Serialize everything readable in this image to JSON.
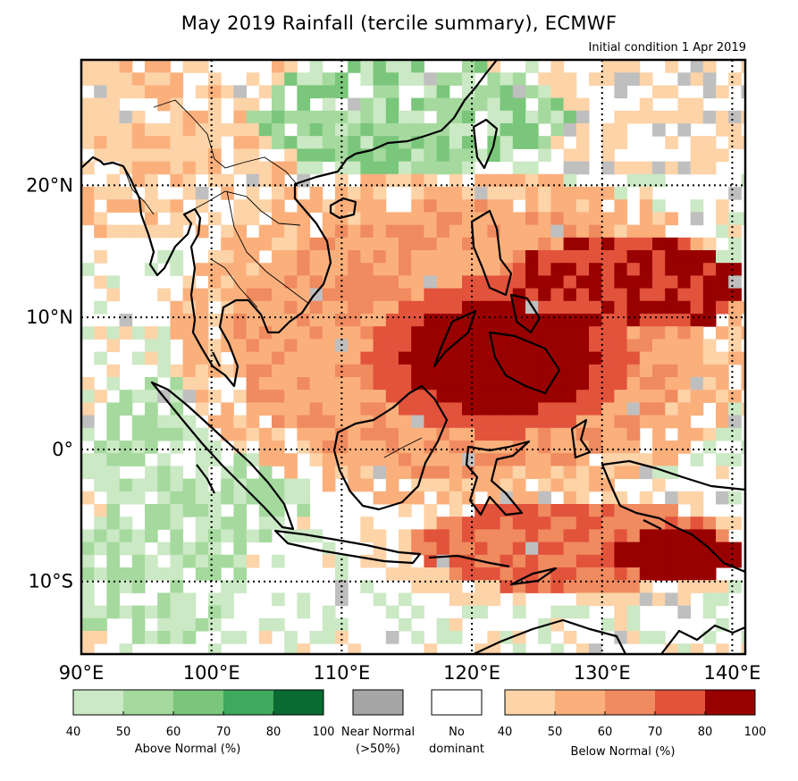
{
  "title": "May 2019 Rainfall (tercile summary), ECMWF",
  "subtitle": "Initial condition 1 Apr 2019",
  "map": {
    "lon_range": [
      90,
      141
    ],
    "lat_range": [
      -15.5,
      29.5
    ],
    "lon_ticks": [
      {
        "value": 90,
        "label": "90°E"
      },
      {
        "value": 100,
        "label": "100°E"
      },
      {
        "value": 110,
        "label": "110°E"
      },
      {
        "value": 120,
        "label": "120°E"
      },
      {
        "value": 130,
        "label": "130°E"
      },
      {
        "value": 140,
        "label": "140°E"
      }
    ],
    "lat_ticks": [
      {
        "value": 20,
        "label": "20°N"
      },
      {
        "value": 10,
        "label": "10°N"
      },
      {
        "value": 0,
        "label": "0°"
      },
      {
        "value": -10,
        "label": "10°S"
      }
    ]
  },
  "colors": {
    "above": [
      "#c7e9c0",
      "#a1d99b",
      "#74c476",
      "#41ab5d",
      "#006d2c"
    ],
    "near": "#a6a6a6",
    "none": "#ffffff",
    "below": [
      "#fdd0a2",
      "#fdae6b",
      "#f16913",
      "#d94801",
      "#8c0000"
    ],
    "below_render": [
      "#fdd3a8",
      "#fbb07c",
      "#f08a5f",
      "#e2533c",
      "#990000"
    ],
    "above_render": [
      "#cbe9c4",
      "#a5d99e",
      "#7ac67b",
      "#3fa95e",
      "#0a6a31"
    ]
  },
  "legend": {
    "above": {
      "caption": "Above Normal (%)",
      "ticks": [
        "40",
        "50",
        "60",
        "70",
        "80",
        "100"
      ]
    },
    "near": {
      "caption_line1": "Near Normal",
      "caption_line2": "(>50%)"
    },
    "none": {
      "caption_line1": "No",
      "caption_line2": "dominant"
    },
    "below": {
      "caption": "Below Normal (%)",
      "ticks": [
        "40",
        "50",
        "60",
        "70",
        "80",
        "100"
      ]
    }
  }
}
